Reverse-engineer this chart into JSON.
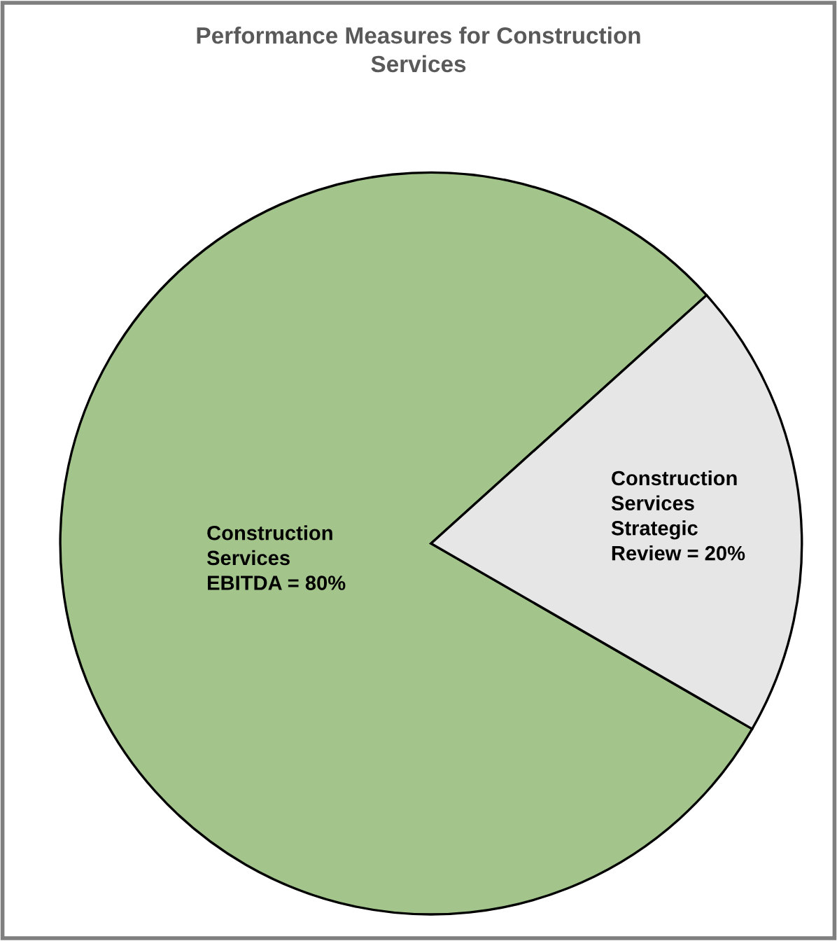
{
  "chart_data": {
    "type": "pie",
    "title": "Performance Measures for Construction\nServices",
    "categories": [
      "Construction\nServices\nEBITDA = 80%",
      "Construction\nServices\nStrategic\nReview = 20%"
    ],
    "values": [
      80,
      20
    ],
    "colors": [
      "#a3c58c",
      "#e6e6e6"
    ]
  }
}
